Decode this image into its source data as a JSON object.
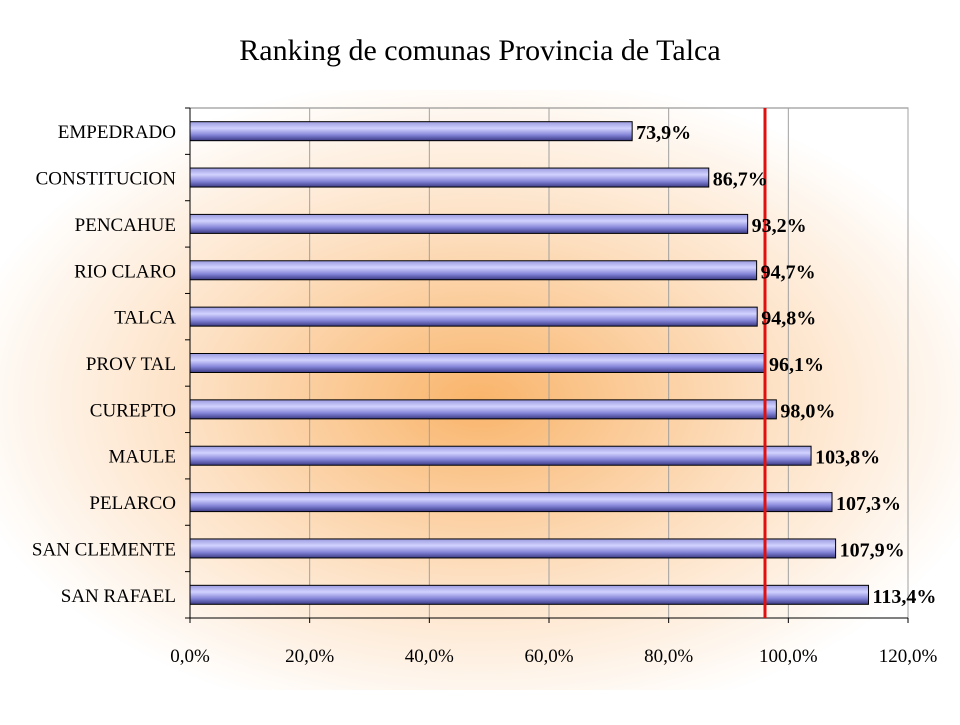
{
  "chart_data": {
    "type": "bar",
    "orientation": "horizontal",
    "title": "Ranking de comunas Provincia de Talca",
    "categories": [
      "EMPEDRADO",
      "CONSTITUCION",
      "PENCAHUE",
      "RIO CLARO",
      "TALCA",
      "PROV TAL",
      "CUREPTO",
      "MAULE",
      "PELARCO",
      "SAN CLEMENTE",
      "SAN RAFAEL"
    ],
    "values": [
      73.9,
      86.7,
      93.2,
      94.7,
      94.8,
      96.1,
      98.0,
      103.8,
      107.3,
      107.9,
      113.4
    ],
    "data_labels": [
      "73,9%",
      "86,7%",
      "93,2%",
      "94,7%",
      "94,8%",
      "96,1%",
      "98,0%",
      "103,8%",
      "107,3%",
      "107,9%",
      "113,4%"
    ],
    "xlim": [
      0,
      120
    ],
    "xticks": [
      0,
      20,
      40,
      60,
      80,
      100,
      120
    ],
    "xtick_labels": [
      "0,0%",
      "20,0%",
      "40,0%",
      "60,0%",
      "80,0%",
      "100,0%",
      "120,0%"
    ],
    "reference_line": {
      "value": 96.1,
      "color": "#e01010"
    },
    "grid": "vertical",
    "legend": "none",
    "colors": {
      "bar_light": "#c8c8ff",
      "bar_mid": "#8080d8",
      "bar_dark": "#383880",
      "glow": "#f9b46a"
    }
  }
}
